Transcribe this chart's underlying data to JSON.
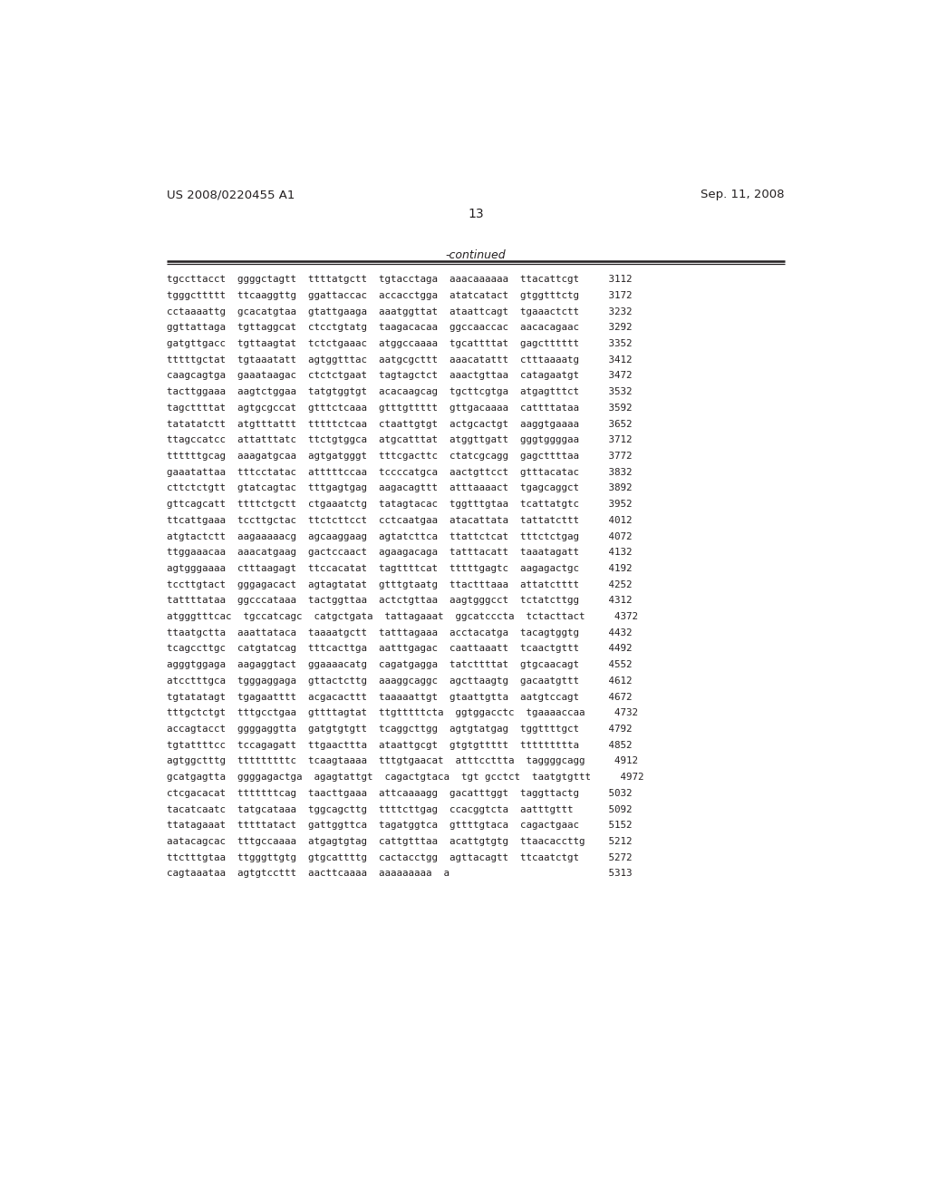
{
  "header_left": "US 2008/0220455 A1",
  "header_right": "Sep. 11, 2008",
  "page_number": "13",
  "continued_label": "-continued",
  "background_color": "#ffffff",
  "text_color": "#231f20",
  "sequence_lines": [
    "tgccttacct  ggggctagtt  ttttatgctt  tgtacctaga  aaacaaaaaa  ttacattcgt     3112",
    "tgggcttttt  ttcaaggttg  ggattaccac  accacctgga  atatcatact  gtggtttctg     3172",
    "cctaaaattg  gcacatgtaa  gtattgaaga  aaatggttat  ataattcagt  tgaaactctt     3232",
    "ggttattaga  tgttaggcat  ctcctgtatg  taagacacaa  ggccaaccac  aacacagaac     3292",
    "gatgttgacc  tgttaagtat  tctctgaaac  atggccaaaa  tgcattttat  gagctttttt     3352",
    "tttttgctat  tgtaaatatt  agtggtttac  aatgcgcttt  aaacatattt  ctttaaaatg     3412",
    "caagcagtga  gaaataagac  ctctctgaat  tagtagctct  aaactgttaa  catagaatgt     3472",
    "tacttggaaa  aagtctggaa  tatgtggtgt  acacaagcag  tgcttcgtga  atgagtttct     3532",
    "tagcttttat  agtgcgccat  gtttctcaaa  gtttgttttt  gttgacaaaa  cattttataa     3592",
    "tatatatctt  atgtttattt  tttttctcaa  ctaattgtgt  actgcactgt  aaggtgaaaa     3652",
    "ttagccatcc  attatttatc  ttctgtggca  atgcatttat  atggttgatt  gggtggggaa     3712",
    "ttttttgcag  aaagatgcaa  agtgatgggt  tttcgacttc  ctatcgcagg  gagcttttaa     3772",
    "gaaatattaa  tttcctatac  atttttccaa  tccccatgca  aactgttcct  gtttacatac     3832",
    "cttctctgtt  gtatcagtac  tttgagtgag  aagacagttt  atttaaaact  tgagcaggct     3892",
    "gttcagcatt  ttttctgctt  ctgaaatctg  tatagtacac  tggtttgtaa  tcattatgtc     3952",
    "ttcattgaaa  tccttgctac  ttctcttcct  cctcaatgaa  atacattata  tattatcttt     4012",
    "atgtactctt  aagaaaaacg  agcaaggaag  agtatcttca  ttattctcat  tttctctgag     4072",
    "ttggaaacaa  aaacatgaag  gactccaact  agaagacaga  tatttacatt  taaatagatt     4132",
    "agtgggaaaa  ctttaagagt  ttccacatat  tagttttcat  tttttgagtc  aagagactgc     4192",
    "tccttgtact  gggagacact  agtagtatat  gtttgtaatg  ttactttaaa  attatctttt     4252",
    "tattttataa  ggcccataaa  tactggttaa  actctgttaa  aagtgggcct  tctatcttgg     4312",
    "atgggtttcac  tgccatcagc  catgctgata  tattagaaat  ggcatcccta  tctacttact     4372",
    "ttaatgctta  aaattataca  taaaatgctt  tatttagaaa  acctacatga  tacagtggtg     4432",
    "tcagccttgc  catgtatcag  tttcacttga  aatttgagac  caattaaatt  tcaactgttt     4492",
    "agggtggaga  aagaggtact  ggaaaacatg  cagatgagga  tatcttttat  gtgcaacagt     4552",
    "atcctttgca  tgggaggaga  gttactcttg  aaaggcaggc  agcttaagtg  gacaatgttt     4612",
    "tgtatatagt  tgagaatttt  acgacacttt  taaaaattgt  gtaattgtta  aatgtccagt     4672",
    "tttgctctgt  tttgcctgaa  gttttagtat  ttgtttttcta  ggtggacctc  tgaaaaccaa     4732",
    "accagtacct  ggggaggtta  gatgtgtgtt  tcaggcttgg  agtgtatgag  tggttttgct     4792",
    "tgtattttcc  tccagagatt  ttgaacttta  ataattgcgt  gtgtgttttt  ttttttttta     4852",
    "agtggctttg  tttttttttc  tcaagtaaaa  tttgtgaacat  atttccttta  taggggcagg     4912",
    "gcatgagtta  ggggagactga  agagtattgt  cagactgtaca  tgt gcctct  taatgtgttt     4972",
    "ctcgacacat  tttttttcag  taacttgaaa  attcaaaagg  gacatttggt  taggttactg     5032",
    "tacatcaatc  tatgcataaa  tggcagcttg  ttttcttgag  ccacggtcta  aatttgttt      5092",
    "ttatagaaat  tttttatact  gattggttca  tagatggtca  gttttgtaca  cagactgaac     5152",
    "aatacagcac  tttgccaaaa  atgagtgtag  cattgtttaa  acattgtgtg  ttaacaccttg    5212",
    "ttctttgtaa  ttgggttgtg  gtgcattttg  cactacctgg  agttacagtt  ttcaatctgt     5272",
    "cagtaaataa  agtgtccttt  aacttcaaaa  aaaaaaaaa  a                           5313"
  ]
}
